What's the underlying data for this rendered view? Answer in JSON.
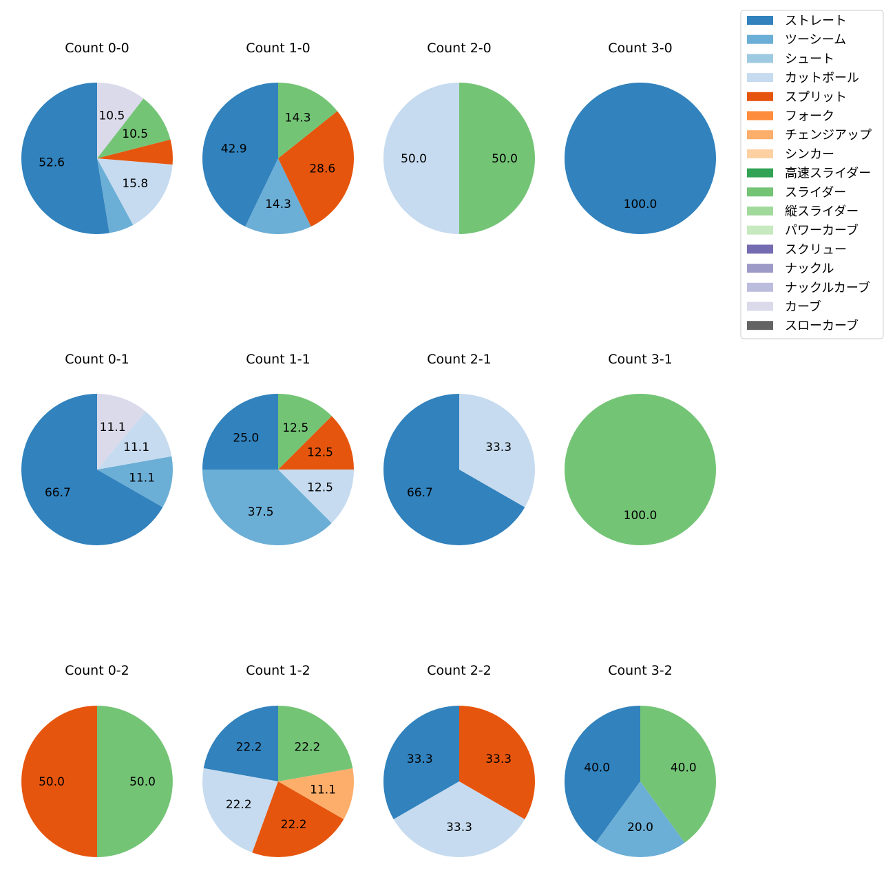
{
  "chart_data": {
    "type": "pie",
    "legend_position": "top-right",
    "categories": [
      {
        "name": "ストレート",
        "color": "#3182bd"
      },
      {
        "name": "ツーシーム",
        "color": "#6baed6"
      },
      {
        "name": "シュート",
        "color": "#9ecae1"
      },
      {
        "name": "カットボール",
        "color": "#c6dbef"
      },
      {
        "name": "スプリット",
        "color": "#e6550d"
      },
      {
        "name": "フォーク",
        "color": "#fd8d3c"
      },
      {
        "name": "チェンジアップ",
        "color": "#fdae6b"
      },
      {
        "name": "シンカー",
        "color": "#fdd0a2"
      },
      {
        "name": "高速スライダー",
        "color": "#31a354"
      },
      {
        "name": "スライダー",
        "color": "#74c476"
      },
      {
        "name": "縦スライダー",
        "color": "#a1d99b"
      },
      {
        "name": "パワーカーブ",
        "color": "#c7e9c0"
      },
      {
        "name": "スクリュー",
        "color": "#756bb1"
      },
      {
        "name": "ナックル",
        "color": "#9e9ac8"
      },
      {
        "name": "ナックルカーブ",
        "color": "#bcbddc"
      },
      {
        "name": "カーブ",
        "color": "#dadaeb"
      },
      {
        "name": "スローカーブ",
        "color": "#636363"
      }
    ],
    "charts": [
      {
        "title": "Count 0-0",
        "slices": [
          {
            "pitch": "ストレート",
            "value": 52.6,
            "label": "52.6"
          },
          {
            "pitch": "ツーシーム",
            "value": 5.3,
            "label": ""
          },
          {
            "pitch": "カットボール",
            "value": 15.8,
            "label": "15.8"
          },
          {
            "pitch": "スプリット",
            "value": 5.3,
            "label": ""
          },
          {
            "pitch": "スライダー",
            "value": 10.5,
            "label": "10.5"
          },
          {
            "pitch": "カーブ",
            "value": 10.5,
            "label": "10.5"
          }
        ]
      },
      {
        "title": "Count 1-0",
        "slices": [
          {
            "pitch": "ストレート",
            "value": 42.9,
            "label": "42.9"
          },
          {
            "pitch": "ツーシーム",
            "value": 14.3,
            "label": "14.3"
          },
          {
            "pitch": "スプリット",
            "value": 28.6,
            "label": "28.6"
          },
          {
            "pitch": "スライダー",
            "value": 14.3,
            "label": "14.3"
          }
        ]
      },
      {
        "title": "Count 2-0",
        "slices": [
          {
            "pitch": "カットボール",
            "value": 50.0,
            "label": "50.0"
          },
          {
            "pitch": "スライダー",
            "value": 50.0,
            "label": "50.0"
          }
        ]
      },
      {
        "title": "Count 3-0",
        "slices": [
          {
            "pitch": "ストレート",
            "value": 100.0,
            "label": "100.0"
          }
        ]
      },
      {
        "title": "Count 0-1",
        "slices": [
          {
            "pitch": "ストレート",
            "value": 66.7,
            "label": "66.7"
          },
          {
            "pitch": "ツーシーム",
            "value": 11.1,
            "label": "11.1"
          },
          {
            "pitch": "カットボール",
            "value": 11.1,
            "label": "11.1"
          },
          {
            "pitch": "カーブ",
            "value": 11.1,
            "label": "11.1"
          }
        ]
      },
      {
        "title": "Count 1-1",
        "slices": [
          {
            "pitch": "ストレート",
            "value": 25.0,
            "label": "25.0"
          },
          {
            "pitch": "ツーシーム",
            "value": 37.5,
            "label": "37.5"
          },
          {
            "pitch": "カットボール",
            "value": 12.5,
            "label": "12.5"
          },
          {
            "pitch": "スプリット",
            "value": 12.5,
            "label": "12.5"
          },
          {
            "pitch": "スライダー",
            "value": 12.5,
            "label": "12.5"
          }
        ]
      },
      {
        "title": "Count 2-1",
        "slices": [
          {
            "pitch": "ストレート",
            "value": 66.7,
            "label": "66.7"
          },
          {
            "pitch": "カットボール",
            "value": 33.3,
            "label": "33.3"
          }
        ]
      },
      {
        "title": "Count 3-1",
        "slices": [
          {
            "pitch": "スライダー",
            "value": 100.0,
            "label": "100.0"
          }
        ]
      },
      {
        "title": "Count 0-2",
        "slices": [
          {
            "pitch": "スプリット",
            "value": 50.0,
            "label": "50.0"
          },
          {
            "pitch": "スライダー",
            "value": 50.0,
            "label": "50.0"
          }
        ]
      },
      {
        "title": "Count 1-2",
        "slices": [
          {
            "pitch": "ストレート",
            "value": 22.2,
            "label": "22.2"
          },
          {
            "pitch": "カットボール",
            "value": 22.2,
            "label": "22.2"
          },
          {
            "pitch": "スプリット",
            "value": 22.2,
            "label": "22.2"
          },
          {
            "pitch": "チェンジアップ",
            "value": 11.1,
            "label": "11.1"
          },
          {
            "pitch": "スライダー",
            "value": 22.2,
            "label": "22.2"
          }
        ]
      },
      {
        "title": "Count 2-2",
        "slices": [
          {
            "pitch": "ストレート",
            "value": 33.3,
            "label": "33.3"
          },
          {
            "pitch": "カットボール",
            "value": 33.3,
            "label": "33.3"
          },
          {
            "pitch": "スプリット",
            "value": 33.3,
            "label": "33.3"
          }
        ]
      },
      {
        "title": "Count 3-2",
        "slices": [
          {
            "pitch": "ストレート",
            "value": 40.0,
            "label": "40.0"
          },
          {
            "pitch": "ツーシーム",
            "value": 20.0,
            "label": "20.0"
          },
          {
            "pitch": "スライダー",
            "value": 40.0,
            "label": "40.0"
          }
        ]
      }
    ]
  }
}
